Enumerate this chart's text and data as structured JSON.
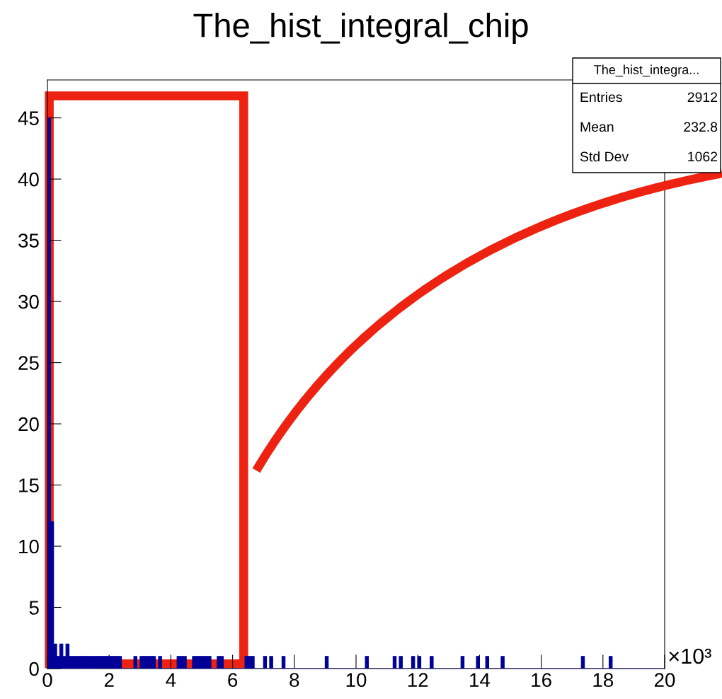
{
  "chart_data": {
    "type": "histogram",
    "title": "The_hist_integral_chip",
    "xlabel": "×10³",
    "annotations": [
      "The_hist_integra...",
      "Entries",
      "2912",
      "Mean",
      "232.8",
      "Std Dev",
      "1062"
    ],
    "bins": [
      0,
      0.1,
      0.2,
      0.3,
      0.4,
      0.5,
      0.6,
      0.7,
      0.8,
      0.9,
      1,
      1.1,
      1.2,
      1.3,
      1.4,
      1.5,
      1.6,
      1.7,
      1.8,
      1.9,
      2,
      2.1,
      2.2,
      2.3,
      2.4,
      2.8,
      2.9,
      3,
      3.1,
      3.2,
      3.3,
      3.4,
      3.5,
      3.6,
      3.7,
      4.2,
      4.3,
      4.4,
      4.5,
      4.7,
      4.8,
      4.9,
      5,
      5.1,
      5.2,
      5.3,
      5.5,
      5.6,
      5.7,
      6.4,
      6.5,
      6.6,
      6.7,
      7,
      7.1,
      7.2,
      7.3,
      7.6,
      7.7,
      9,
      9.1,
      10.3,
      10.4,
      11.2,
      11.3,
      11.4,
      11.5,
      11.8,
      11.9,
      12,
      12.1,
      12.4,
      12.5,
      13.4,
      13.5,
      13.9,
      14,
      14.2,
      14.3,
      14.7,
      14.8,
      17.3,
      17.4,
      18.2,
      18.3,
      20
    ],
    "values": [
      45,
      12,
      2,
      1,
      2,
      1,
      2,
      1,
      1,
      1,
      1,
      1,
      1,
      1,
      1,
      1,
      1,
      1,
      1,
      1,
      1,
      1,
      1,
      1,
      0,
      1,
      0,
      1,
      1,
      1,
      1,
      1,
      0,
      1,
      0,
      1,
      1,
      1,
      0,
      1,
      1,
      1,
      1,
      1,
      1,
      0,
      1,
      1,
      0,
      1,
      1,
      1,
      0,
      1,
      0,
      1,
      0,
      1,
      0,
      1,
      0,
      1,
      0,
      1,
      0,
      1,
      0,
      1,
      0,
      1,
      0,
      1,
      0,
      1,
      0,
      1,
      0,
      1,
      0,
      1,
      0,
      1,
      0,
      1,
      0
    ],
    "color": "#000099",
    "xlim": [
      0,
      20
    ],
    "xticks": [
      0,
      2,
      4,
      6,
      8,
      10,
      12,
      14,
      16,
      18,
      20
    ],
    "ylim": [
      0,
      48.1
    ],
    "yticks": [
      0,
      5,
      10,
      15,
      20,
      25,
      30,
      35,
      40,
      45
    ],
    "grid": false
  }
}
